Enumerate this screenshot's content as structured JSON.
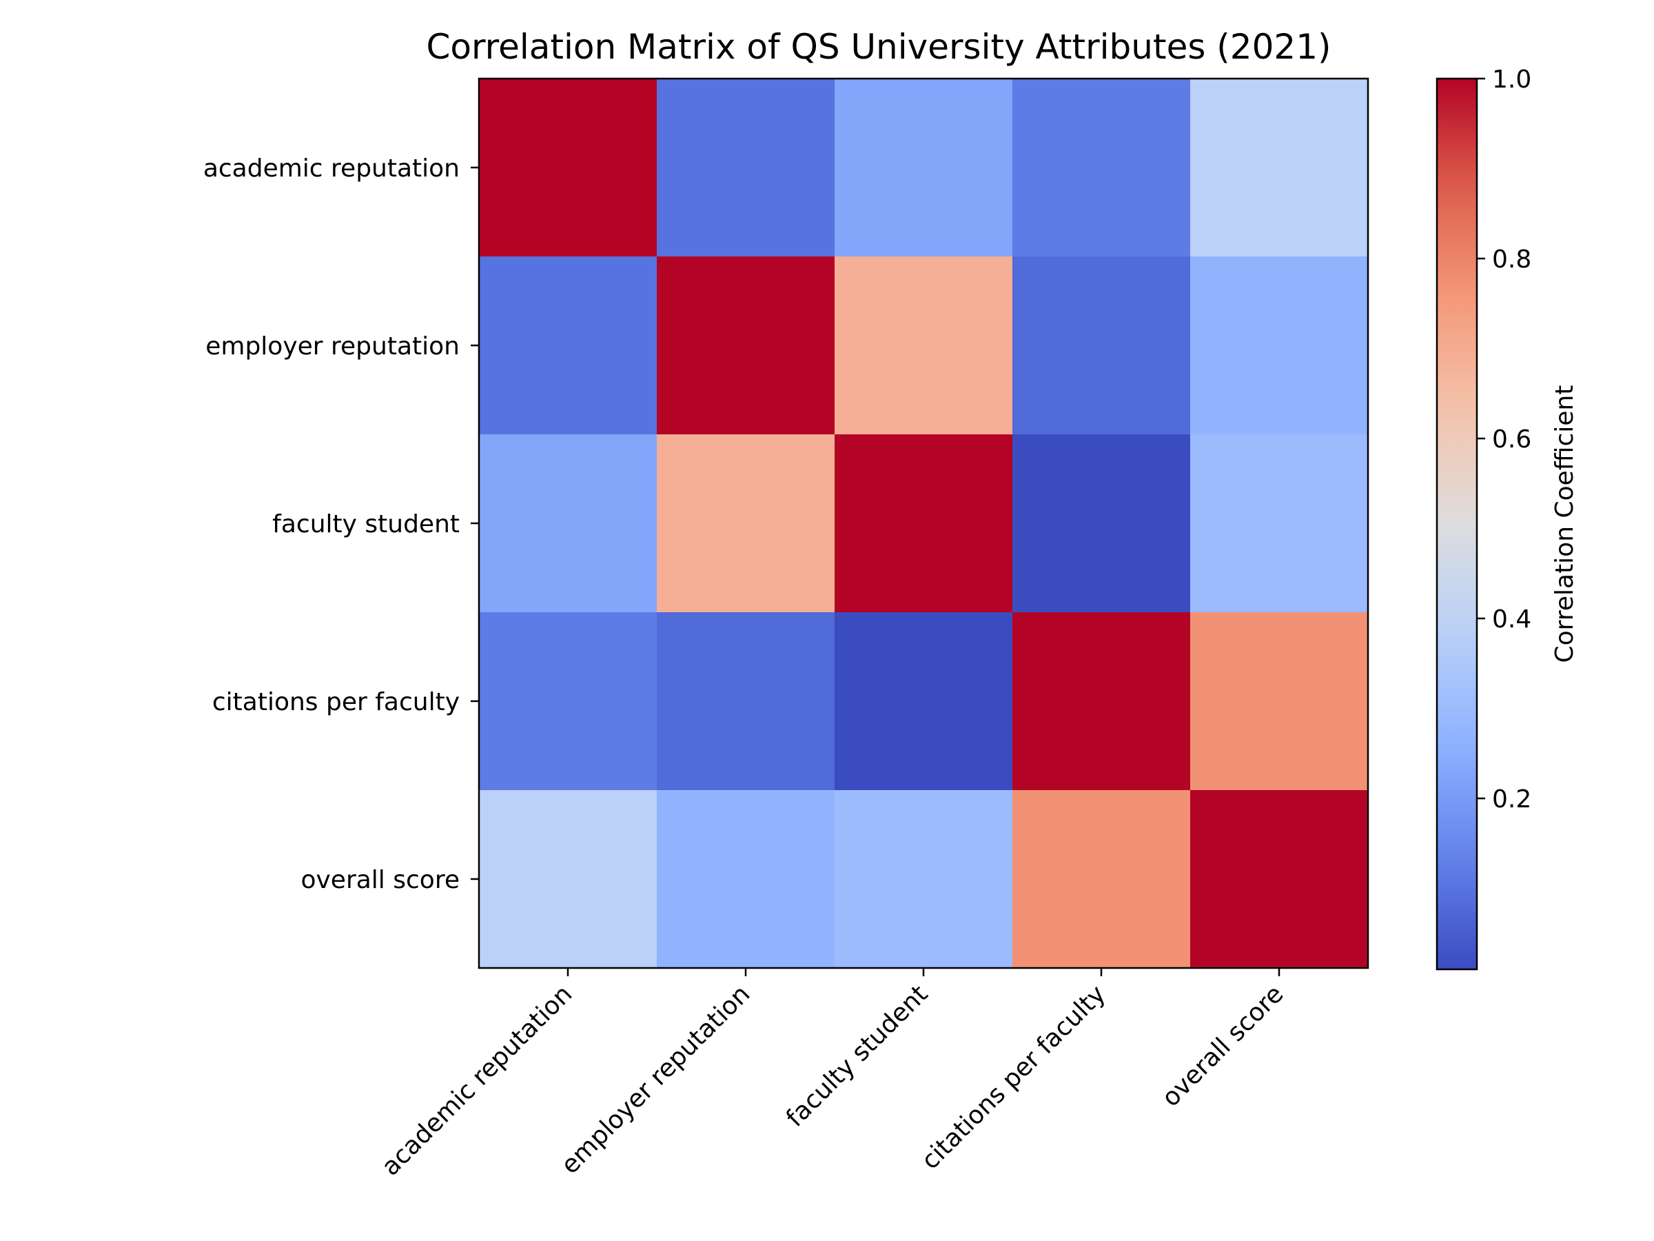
{
  "chart_data": {
    "type": "heatmap",
    "title": "Correlation Matrix of QS University Attributes (2021)",
    "xlabel": "",
    "ylabel": "",
    "x_labels": [
      "academic reputation",
      "employer reputation",
      "faculty student",
      "citations per faculty",
      "overall score"
    ],
    "y_labels": [
      "academic reputation",
      "employer reputation",
      "faculty student",
      "citations per faculty",
      "overall score"
    ],
    "values": [
      [
        1.0,
        0.1,
        0.23,
        0.12,
        0.39
      ],
      [
        0.1,
        1.0,
        0.69,
        0.08,
        0.27
      ],
      [
        0.23,
        0.69,
        1.0,
        0.01,
        0.3
      ],
      [
        0.12,
        0.08,
        0.01,
        1.0,
        0.77
      ],
      [
        0.39,
        0.27,
        0.3,
        0.77,
        1.0
      ]
    ],
    "colormap": "coolwarm",
    "colorbar": {
      "label": "Correlation Coefficient",
      "range": [
        0.01,
        1.0
      ],
      "ticks": [
        0.2,
        0.4,
        0.6,
        0.8,
        1.0
      ],
      "tick_labels": [
        "0.2",
        "0.4",
        "0.6",
        "0.8",
        "1.0"
      ]
    },
    "grid": false,
    "legend": "none"
  }
}
